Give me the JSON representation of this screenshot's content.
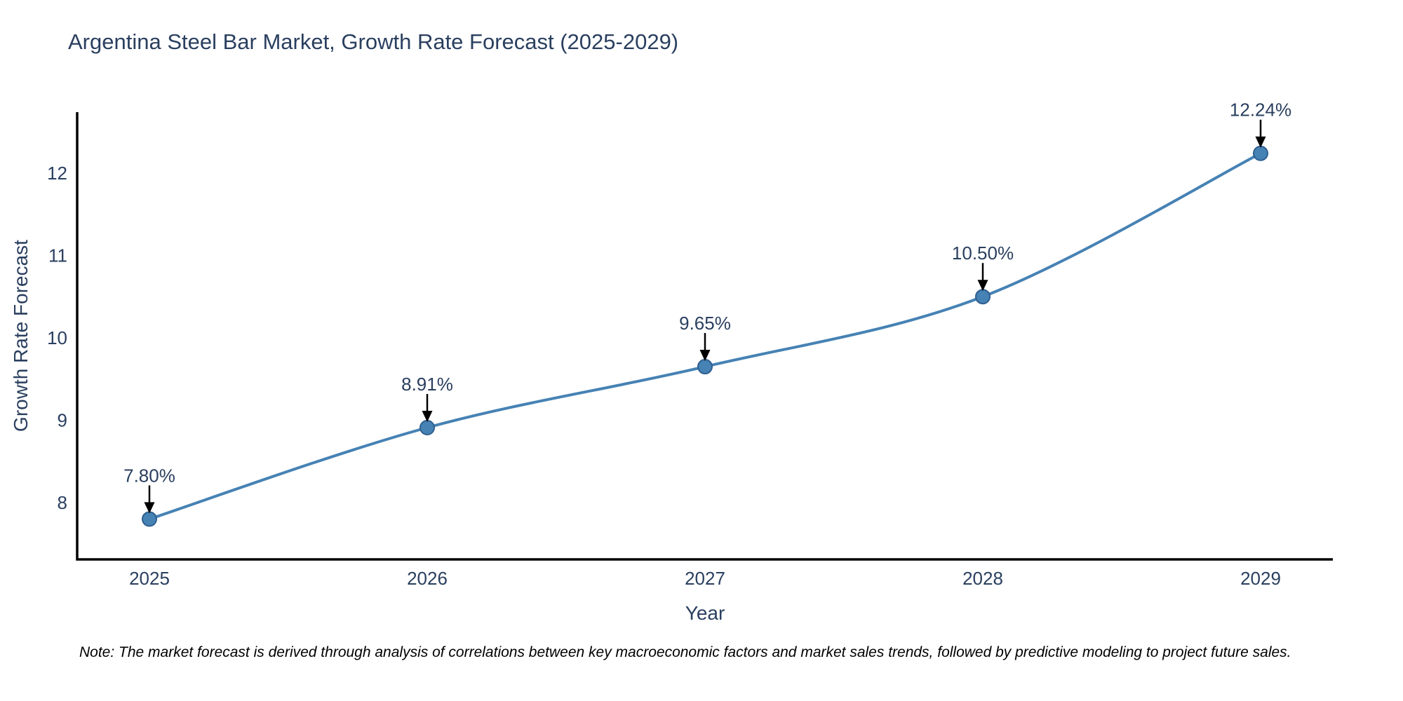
{
  "note": {
    "text": "Note: The market forecast is derived through analysis of correlations between key macroeconomic factors and market sales trends, followed by predictive modeling to project future sales."
  },
  "chart_data": {
    "type": "line",
    "title": "Argentina Steel Bar Market, Growth Rate Forecast (2025-2029)",
    "xlabel": "Year",
    "ylabel": "Growth Rate Forecast",
    "x": [
      2025,
      2026,
      2027,
      2028,
      2029
    ],
    "series": [
      {
        "name": "Growth Rate Forecast",
        "values": [
          7.8,
          8.91,
          9.65,
          10.5,
          12.24
        ]
      }
    ],
    "point_labels": [
      "7.80%",
      "8.91%",
      "9.65%",
      "10.50%",
      "12.24%"
    ],
    "yticks": [
      8,
      9,
      10,
      11,
      12
    ],
    "ylim": [
      7.31,
      12.74
    ],
    "line_shape": "spline",
    "markers": true,
    "grid": false,
    "legend": "none",
    "annotation_arrows": true,
    "colors": {
      "line": "#4682b4",
      "marker": "#4682b4",
      "marker_edge": "#2f5f8f",
      "axis": "#000000",
      "text": "#2a3f5f",
      "arrow": "#000000",
      "background": "#ffffff"
    }
  }
}
